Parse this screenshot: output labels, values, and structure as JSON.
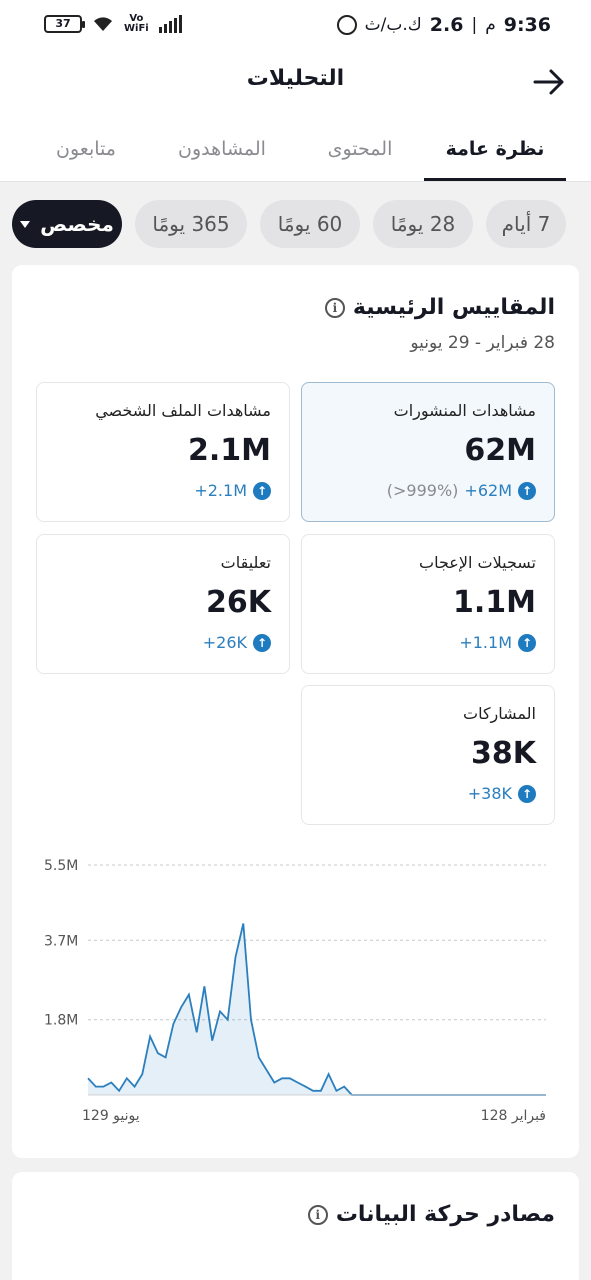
{
  "status_bar": {
    "time": "9:36",
    "speed": "2.6",
    "speed_unit": "ك.ب/ث",
    "ampm": "م",
    "battery": "37",
    "volte_top": "Vo",
    "volte_bottom": "WiFi"
  },
  "header": {
    "title": "التحليلات"
  },
  "tabs": [
    {
      "label": "نظرة عامة",
      "active": true
    },
    {
      "label": "المحتوى",
      "active": false
    },
    {
      "label": "المشاهدون",
      "active": false
    },
    {
      "label": "متابعون",
      "active": false
    }
  ],
  "ranges": [
    {
      "label": "7 أيام"
    },
    {
      "label": "28 يومًا"
    },
    {
      "label": "60 يومًا"
    },
    {
      "label": "365 يومًا"
    },
    {
      "label": "مخصص",
      "selected": true
    }
  ],
  "key_metrics": {
    "title": "المقاييس الرئيسية",
    "date_range": "28 فبراير - 29 يونيو",
    "items": [
      {
        "label": "مشاهدات المنشورات",
        "value": "62M",
        "change": "+62M",
        "pct": "(>999%)"
      },
      {
        "label": "مشاهدات الملف الشخصي",
        "value": "2.1M",
        "change": "+2.1M"
      },
      {
        "label": "تسجيلات الإعجاب",
        "value": "1.1M",
        "change": "+1.1M"
      },
      {
        "label": "تعليقات",
        "value": "26K",
        "change": "+26K"
      },
      {
        "label": "المشاركات",
        "value": "38K",
        "change": "+38K"
      }
    ]
  },
  "chart_data": {
    "type": "area",
    "y_ticks": [
      "5.5M",
      "3.7M",
      "1.8M"
    ],
    "ylim": [
      0,
      5.5
    ],
    "x_start_label": "128 فبراير",
    "x_end_label": "129 يونيو",
    "color": "#2b7fbe",
    "values": [
      0.4,
      0.2,
      0.2,
      0.3,
      0.1,
      0.4,
      0.2,
      0.5,
      1.4,
      1.0,
      0.9,
      1.7,
      2.1,
      2.4,
      1.5,
      2.6,
      1.3,
      2.0,
      1.8,
      3.3,
      4.1,
      1.8,
      0.9,
      0.6,
      0.3,
      0.4,
      0.4,
      0.3,
      0.2,
      0.1,
      0.1,
      0.5,
      0.1,
      0.2,
      0.0,
      0.0,
      0.0,
      0.0,
      0.0,
      0.0,
      0.0,
      0.0,
      0.0,
      0.0,
      0.0,
      0.0,
      0.0,
      0.0,
      0.0,
      0.0,
      0.0,
      0.0,
      0.0,
      0.0,
      0.0,
      0.0,
      0.0,
      0.0,
      0.0,
      0.0
    ]
  },
  "traffic_sources": {
    "title": "مصادر حركة البيانات"
  },
  "colors": {
    "accent": "#2b7fbe",
    "dark": "#161823"
  }
}
